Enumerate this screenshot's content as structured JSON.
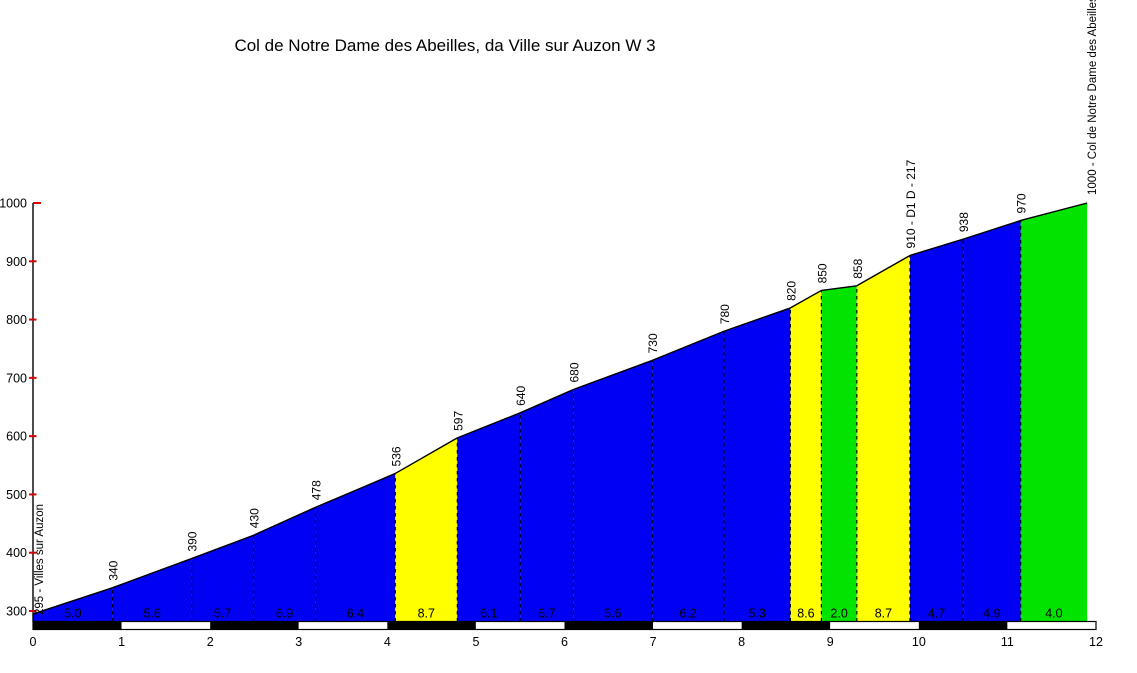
{
  "chart_data": {
    "type": "area",
    "title": "Col de Notre Dame des Abeilles, da Ville sur Auzon W 3",
    "x_unit": "km",
    "y_unit": "m",
    "xlim": [
      0,
      12
    ],
    "ylim": [
      300,
      1000
    ],
    "x_ticks": [
      "0",
      "1",
      "2",
      "3",
      "4",
      "5",
      "6",
      "7",
      "8",
      "9",
      "10",
      "11",
      "12"
    ],
    "y_ticks": [
      "300",
      "400",
      "500",
      "600",
      "700",
      "800",
      "900",
      "1000"
    ],
    "grid": false,
    "legend": "none",
    "start_label": "295 - Villes sur Auzon",
    "summit_label": "1000 - Col de Notre Dame des Abeilles",
    "points": [
      {
        "km": 0.0,
        "ele": 295,
        "label": ""
      },
      {
        "km": 0.9,
        "ele": 340,
        "label": "340"
      },
      {
        "km": 1.79,
        "ele": 390,
        "label": "390"
      },
      {
        "km": 2.49,
        "ele": 430,
        "label": "430"
      },
      {
        "km": 3.19,
        "ele": 478,
        "label": "478"
      },
      {
        "km": 4.09,
        "ele": 536,
        "label": "536"
      },
      {
        "km": 4.79,
        "ele": 597,
        "label": "597"
      },
      {
        "km": 5.5,
        "ele": 640,
        "label": "640"
      },
      {
        "km": 6.1,
        "ele": 680,
        "label": "680"
      },
      {
        "km": 6.99,
        "ele": 730,
        "label": "730"
      },
      {
        "km": 7.8,
        "ele": 780,
        "label": "780"
      },
      {
        "km": 8.55,
        "ele": 820,
        "label": "820"
      },
      {
        "km": 8.9,
        "ele": 850,
        "label": "850"
      },
      {
        "km": 9.3,
        "ele": 858,
        "label": "858"
      },
      {
        "km": 9.9,
        "ele": 910,
        "label": "910 - D1 D - 217"
      },
      {
        "km": 10.5,
        "ele": 938,
        "label": "938"
      },
      {
        "km": 11.15,
        "ele": 970,
        "label": "970"
      },
      {
        "km": 11.9,
        "ele": 1000,
        "label": ""
      }
    ],
    "segments": [
      {
        "from_km": 0.0,
        "to_km": 0.9,
        "grade": "5.0",
        "color": "blue"
      },
      {
        "from_km": 0.9,
        "to_km": 1.79,
        "grade": "5.6",
        "color": "blue"
      },
      {
        "from_km": 1.79,
        "to_km": 2.49,
        "grade": "5.7",
        "color": "blue"
      },
      {
        "from_km": 2.49,
        "to_km": 3.19,
        "grade": "6.9",
        "color": "blue"
      },
      {
        "from_km": 3.19,
        "to_km": 4.09,
        "grade": "6.4",
        "color": "blue"
      },
      {
        "from_km": 4.09,
        "to_km": 4.79,
        "grade": "8.7",
        "color": "yellow"
      },
      {
        "from_km": 4.79,
        "to_km": 5.5,
        "grade": "6.1",
        "color": "blue"
      },
      {
        "from_km": 5.5,
        "to_km": 6.1,
        "grade": "6.7",
        "color": "blue"
      },
      {
        "from_km": 6.1,
        "to_km": 6.99,
        "grade": "5.6",
        "color": "blue"
      },
      {
        "from_km": 6.99,
        "to_km": 7.8,
        "grade": "6.2",
        "color": "blue"
      },
      {
        "from_km": 7.8,
        "to_km": 8.55,
        "grade": "5.3",
        "color": "blue"
      },
      {
        "from_km": 8.55,
        "to_km": 8.9,
        "grade": "8.6",
        "color": "yellow"
      },
      {
        "from_km": 8.9,
        "to_km": 9.3,
        "grade": "2.0",
        "color": "green"
      },
      {
        "from_km": 9.3,
        "to_km": 9.9,
        "grade": "8.7",
        "color": "yellow"
      },
      {
        "from_km": 9.9,
        "to_km": 10.5,
        "grade": "4.7",
        "color": "blue"
      },
      {
        "from_km": 10.5,
        "to_km": 11.15,
        "grade": "4.9",
        "color": "blue"
      },
      {
        "from_km": 11.15,
        "to_km": 11.9,
        "grade": "4.0",
        "color": "green"
      }
    ],
    "km_bar": {
      "first_color": "black",
      "colors": [
        "black",
        "white"
      ]
    },
    "palette": {
      "blue": "#0000F2",
      "yellow": "#FFFF00",
      "green": "#00E400",
      "outline": "#000000",
      "axis": "#000000",
      "tick_red": "#DD0000",
      "text": "#000000",
      "background": "#FFFFFF"
    }
  }
}
